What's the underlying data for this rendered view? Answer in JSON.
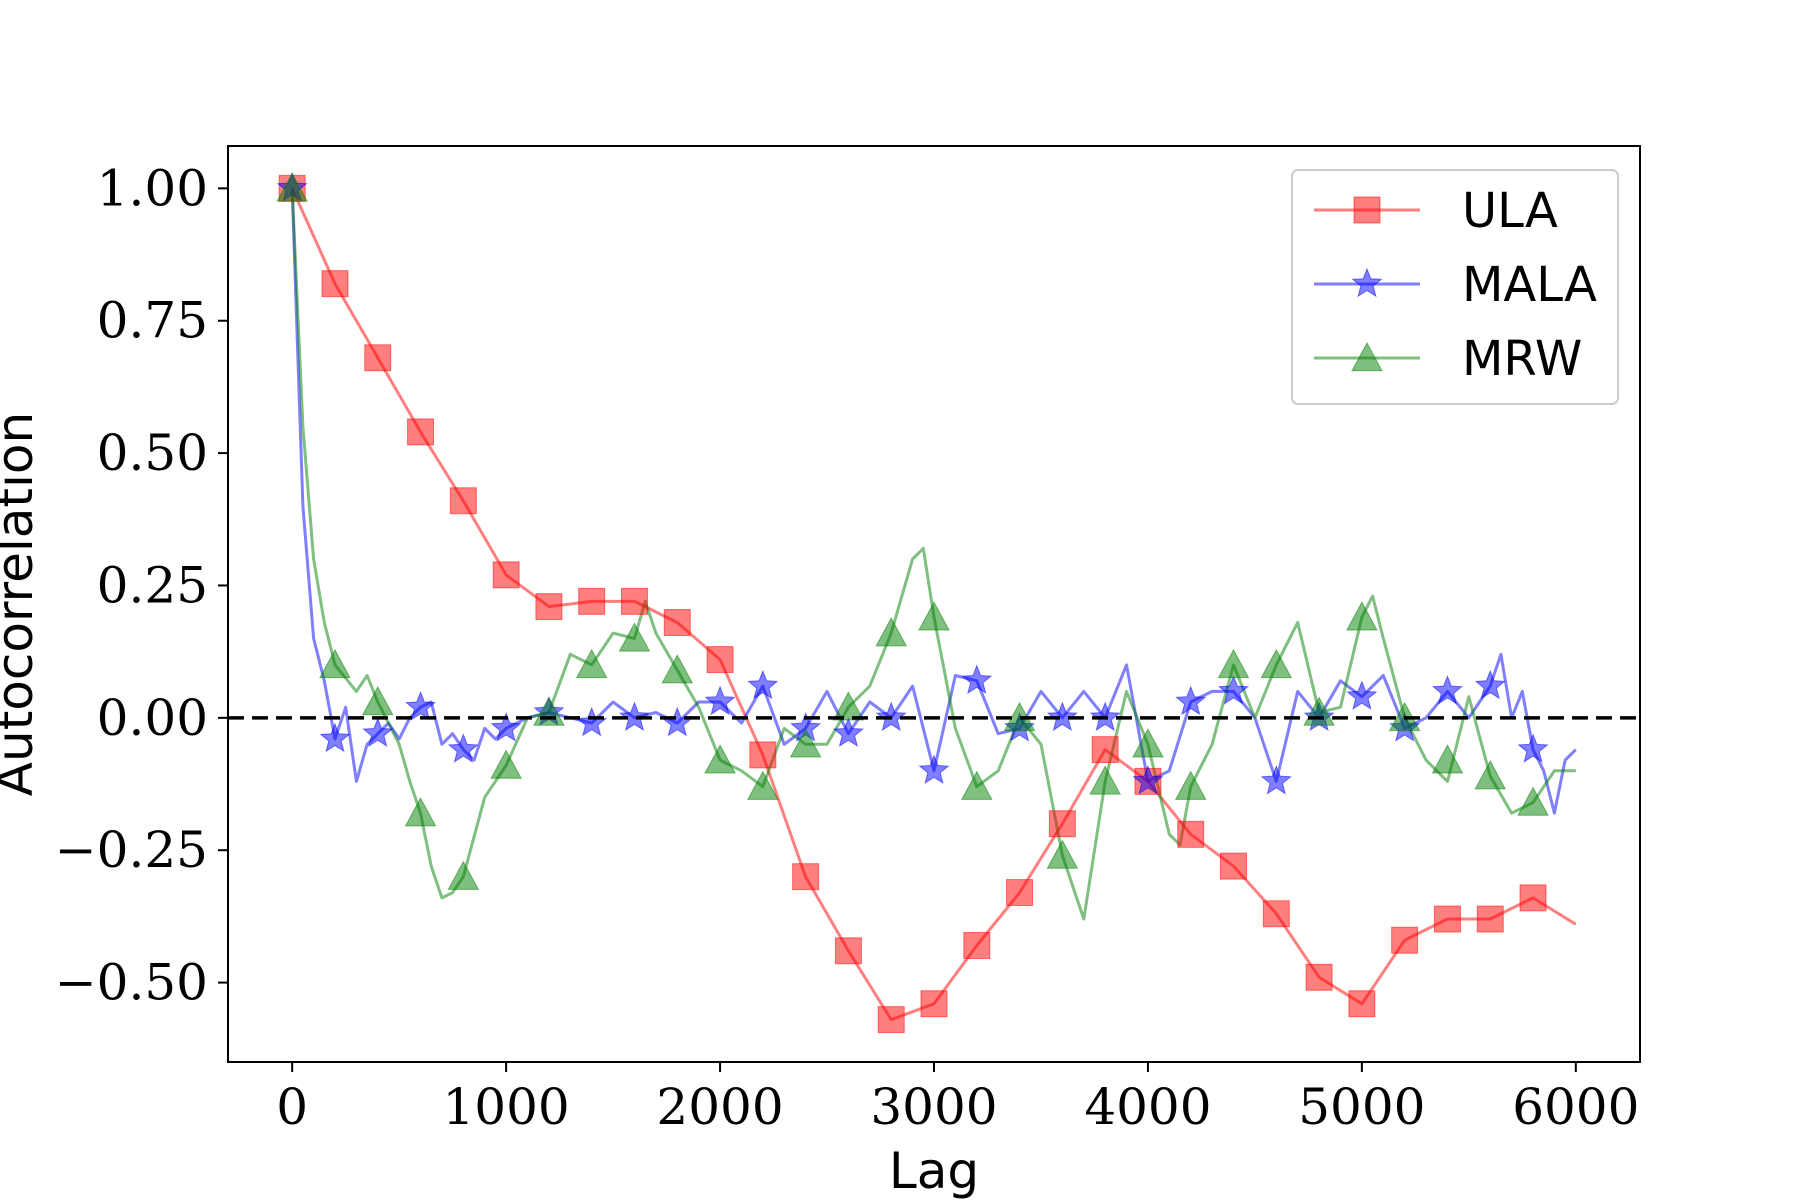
{
  "chart_data": {
    "type": "line",
    "title": "",
    "xlabel": "Lag",
    "ylabel": "Autocorrelation",
    "xlim": [
      -300,
      6300
    ],
    "ylim": [
      -0.65,
      1.08
    ],
    "xticks": [
      0,
      1000,
      2000,
      3000,
      4000,
      5000,
      6000
    ],
    "xtick_labels": [
      "0",
      "1000",
      "2000",
      "3000",
      "4000",
      "5000",
      "6000"
    ],
    "yticks": [
      1.0,
      0.75,
      0.5,
      0.25,
      0.0,
      -0.25,
      -0.5
    ],
    "ytick_labels": [
      "1.00",
      "0.75",
      "0.50",
      "0.25",
      "0.00",
      "−0.25",
      "−0.50"
    ],
    "grid": false,
    "legend_position": "top-right",
    "reference_line": {
      "y": 0.0,
      "style": "dashed",
      "color": "#000000"
    },
    "series": [
      {
        "name": "ULA",
        "color": "#ff0000",
        "marker": "square",
        "x": [
          0,
          200,
          400,
          600,
          800,
          1000,
          1200,
          1400,
          1600,
          1800,
          2000,
          2200,
          2400,
          2600,
          2800,
          3000,
          3200,
          3400,
          3600,
          3800,
          4000,
          4200,
          4400,
          4600,
          4800,
          5000,
          5200,
          5400,
          5600,
          5800,
          6000
        ],
        "y": [
          1.0,
          0.82,
          0.68,
          0.54,
          0.41,
          0.27,
          0.21,
          0.22,
          0.22,
          0.18,
          0.11,
          -0.07,
          -0.3,
          -0.44,
          -0.57,
          -0.54,
          -0.43,
          -0.33,
          -0.2,
          -0.06,
          -0.12,
          -0.22,
          -0.28,
          -0.37,
          -0.49,
          -0.54,
          -0.42,
          -0.38,
          -0.38,
          -0.34,
          -0.39
        ],
        "markers_x": [
          0,
          200,
          400,
          600,
          800,
          1000,
          1200,
          1400,
          1600,
          1800,
          2000,
          2200,
          2400,
          2600,
          2800,
          3000,
          3200,
          3400,
          3600,
          3800,
          4000,
          4200,
          4400,
          4600,
          4800,
          5000,
          5200,
          5400,
          5600,
          5800
        ],
        "markers_y": [
          1.0,
          0.82,
          0.68,
          0.54,
          0.41,
          0.27,
          0.21,
          0.22,
          0.22,
          0.18,
          0.11,
          -0.07,
          -0.3,
          -0.44,
          -0.57,
          -0.54,
          -0.43,
          -0.33,
          -0.2,
          -0.06,
          -0.12,
          -0.22,
          -0.28,
          -0.37,
          -0.49,
          -0.54,
          -0.42,
          -0.38,
          -0.38,
          -0.34
        ]
      },
      {
        "name": "MALA",
        "color": "#0000ff",
        "marker": "star",
        "x": [
          0,
          50,
          100,
          150,
          200,
          250,
          300,
          350,
          400,
          450,
          500,
          550,
          600,
          650,
          700,
          750,
          800,
          850,
          900,
          950,
          1000,
          1100,
          1200,
          1300,
          1400,
          1500,
          1600,
          1700,
          1800,
          1900,
          2000,
          2100,
          2200,
          2300,
          2400,
          2500,
          2600,
          2700,
          2800,
          2900,
          3000,
          3100,
          3200,
          3300,
          3400,
          3500,
          3600,
          3700,
          3800,
          3900,
          4000,
          4100,
          4200,
          4300,
          4400,
          4500,
          4600,
          4700,
          4800,
          4900,
          5000,
          5100,
          5200,
          5300,
          5400,
          5500,
          5600,
          5650,
          5700,
          5750,
          5800,
          5850,
          5900,
          5950,
          6000
        ],
        "y": [
          1.0,
          0.4,
          0.15,
          0.07,
          -0.04,
          0.02,
          -0.12,
          -0.05,
          -0.03,
          -0.01,
          -0.04,
          0.0,
          0.02,
          0.03,
          -0.05,
          -0.03,
          -0.06,
          -0.08,
          -0.02,
          -0.04,
          -0.02,
          0.0,
          0.01,
          0.0,
          -0.01,
          0.03,
          0.0,
          0.01,
          -0.01,
          0.03,
          0.03,
          -0.01,
          0.06,
          -0.05,
          -0.02,
          0.05,
          -0.03,
          0.03,
          0.0,
          0.06,
          -0.1,
          0.08,
          0.07,
          -0.03,
          -0.02,
          0.05,
          0.0,
          0.05,
          0.0,
          0.1,
          -0.12,
          -0.1,
          0.03,
          0.05,
          0.05,
          0.0,
          -0.12,
          0.05,
          0.0,
          0.07,
          0.04,
          0.08,
          -0.02,
          0.0,
          0.05,
          0.0,
          0.06,
          0.12,
          0.0,
          0.05,
          -0.06,
          -0.1,
          -0.18,
          -0.08,
          -0.06
        ],
        "markers_x": [
          0,
          200,
          400,
          600,
          800,
          1000,
          1200,
          1400,
          1600,
          1800,
          2000,
          2200,
          2400,
          2600,
          2800,
          3000,
          3200,
          3400,
          3600,
          3800,
          4000,
          4200,
          4400,
          4600,
          4800,
          5000,
          5200,
          5400,
          5600,
          5800
        ],
        "markers_y": [
          1.0,
          -0.04,
          -0.03,
          0.02,
          -0.06,
          -0.02,
          0.01,
          -0.01,
          0.0,
          -0.01,
          0.03,
          0.06,
          -0.02,
          -0.03,
          0.0,
          -0.1,
          0.07,
          -0.02,
          0.0,
          0.0,
          -0.12,
          0.03,
          0.05,
          -0.12,
          0.0,
          0.04,
          -0.02,
          0.05,
          0.06,
          -0.06
        ]
      },
      {
        "name": "MRW",
        "color": "#008000",
        "marker": "triangle",
        "x": [
          0,
          50,
          100,
          150,
          200,
          300,
          350,
          400,
          500,
          550,
          600,
          650,
          700,
          750,
          800,
          900,
          1000,
          1100,
          1200,
          1300,
          1400,
          1500,
          1600,
          1650,
          1700,
          1800,
          1900,
          2000,
          2100,
          2200,
          2300,
          2400,
          2500,
          2600,
          2700,
          2800,
          2900,
          2950,
          3000,
          3100,
          3200,
          3300,
          3400,
          3500,
          3600,
          3700,
          3800,
          3900,
          4000,
          4100,
          4150,
          4200,
          4300,
          4400,
          4500,
          4600,
          4700,
          4800,
          4900,
          5000,
          5050,
          5100,
          5200,
          5300,
          5400,
          5500,
          5600,
          5700,
          5800,
          5900,
          6000
        ],
        "y": [
          1.0,
          0.55,
          0.3,
          0.18,
          0.1,
          0.05,
          0.08,
          0.03,
          -0.05,
          -0.12,
          -0.18,
          -0.28,
          -0.34,
          -0.33,
          -0.3,
          -0.15,
          -0.09,
          0.0,
          0.01,
          0.12,
          0.1,
          0.16,
          0.15,
          0.22,
          0.16,
          0.09,
          0.02,
          -0.08,
          -0.1,
          -0.13,
          -0.02,
          -0.05,
          -0.05,
          0.02,
          0.06,
          0.16,
          0.3,
          0.32,
          0.19,
          -0.02,
          -0.13,
          -0.1,
          0.0,
          -0.05,
          -0.26,
          -0.38,
          -0.12,
          0.05,
          -0.05,
          -0.22,
          -0.24,
          -0.13,
          -0.05,
          0.1,
          0.0,
          0.1,
          0.18,
          0.01,
          0.02,
          0.19,
          0.23,
          0.15,
          0.0,
          -0.08,
          -0.12,
          0.04,
          -0.11,
          -0.18,
          -0.16,
          -0.1,
          -0.1
        ],
        "markers_x": [
          0,
          200,
          400,
          600,
          800,
          1000,
          1200,
          1400,
          1600,
          1800,
          2000,
          2200,
          2400,
          2600,
          2800,
          3000,
          3200,
          3400,
          3600,
          3800,
          4000,
          4200,
          4400,
          4600,
          4800,
          5000,
          5200,
          5400,
          5600,
          5800
        ],
        "markers_y": [
          1.0,
          0.1,
          0.03,
          -0.18,
          -0.3,
          -0.09,
          0.01,
          0.1,
          0.15,
          0.09,
          -0.08,
          -0.13,
          -0.05,
          0.02,
          0.16,
          0.19,
          -0.13,
          0.0,
          -0.26,
          -0.12,
          -0.05,
          -0.13,
          0.1,
          0.1,
          0.01,
          0.19,
          0.0,
          -0.08,
          -0.11,
          -0.16
        ]
      }
    ]
  }
}
